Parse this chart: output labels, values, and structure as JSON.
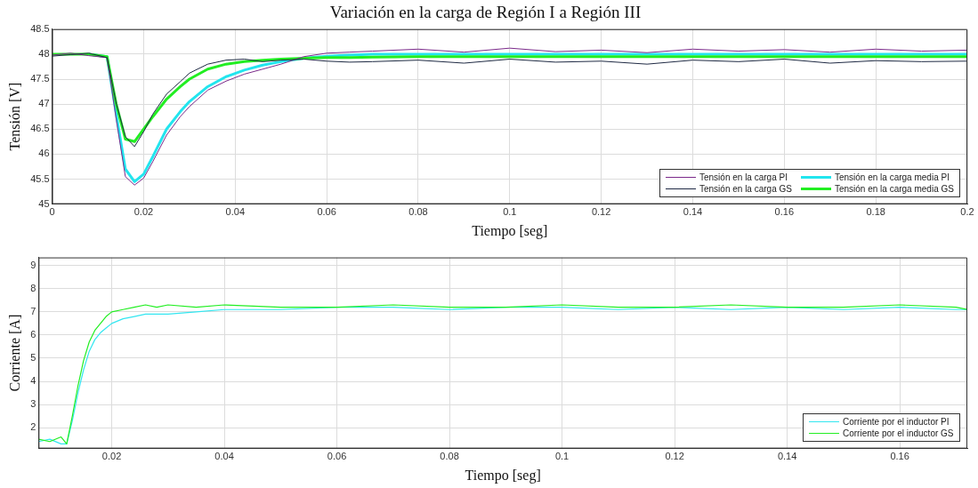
{
  "chart_data": [
    {
      "type": "line",
      "title": "Variación en la carga de Región I a Región III",
      "xlabel": "Tiempo [seg]",
      "ylabel": "Tensión [V]",
      "x": [
        0,
        0.004,
        0.008,
        0.012,
        0.014,
        0.016,
        0.018,
        0.02,
        0.022,
        0.025,
        0.028,
        0.03,
        0.034,
        0.038,
        0.042,
        0.046,
        0.05,
        0.055,
        0.06,
        0.065,
        0.07,
        0.08,
        0.09,
        0.1,
        0.11,
        0.12,
        0.13,
        0.14,
        0.15,
        0.16,
        0.17,
        0.18,
        0.19,
        0.2
      ],
      "series": [
        {
          "name": "Tensión en la carga PI",
          "color": "#7b2a8a",
          "values": [
            47.98,
            48.02,
            47.97,
            47.93,
            46.7,
            45.55,
            45.38,
            45.52,
            45.85,
            46.38,
            46.75,
            46.95,
            47.28,
            47.46,
            47.6,
            47.7,
            47.8,
            47.95,
            48.02,
            48.04,
            48.06,
            48.1,
            48.04,
            48.12,
            48.05,
            48.08,
            48.03,
            48.1,
            48.06,
            48.09,
            48.04,
            48.1,
            48.06,
            48.08
          ]
        },
        {
          "name": "Tensión en la carga media PI",
          "color": "#22e5ee",
          "values": [
            null,
            null,
            48,
            47.95,
            46.8,
            45.7,
            45.45,
            45.6,
            45.95,
            46.5,
            46.85,
            47.05,
            47.35,
            47.55,
            47.68,
            47.78,
            47.85,
            47.92,
            47.96,
            47.98,
            48,
            48,
            48,
            48,
            48,
            48,
            48,
            48,
            48,
            48,
            48,
            48,
            48,
            48
          ]
        },
        {
          "name": "Tensión en la carga GS",
          "color": "#1f2a44",
          "values": [
            47.96,
            47.99,
            48.02,
            47.93,
            47.02,
            46.35,
            46.15,
            46.45,
            46.8,
            47.2,
            47.45,
            47.62,
            47.8,
            47.88,
            47.9,
            47.85,
            47.88,
            47.9,
            47.86,
            47.84,
            47.85,
            47.88,
            47.82,
            47.9,
            47.84,
            47.86,
            47.8,
            47.88,
            47.85,
            47.9,
            47.82,
            47.87,
            47.85,
            47.86
          ]
        },
        {
          "name": "Tensión en la carga media GS",
          "color": "#22ee22",
          "values": [
            48,
            48,
            48,
            47.95,
            47,
            46.3,
            46.25,
            46.5,
            46.75,
            47.1,
            47.35,
            47.5,
            47.7,
            47.8,
            47.85,
            47.88,
            47.9,
            47.92,
            47.93,
            47.93,
            47.94,
            47.95,
            47.95,
            47.95,
            47.95,
            47.95,
            47.95,
            47.95,
            47.95,
            47.95,
            47.95,
            47.95,
            47.95,
            47.95
          ]
        }
      ],
      "xlim": [
        0,
        0.2
      ],
      "xticks": [
        0,
        0.02,
        0.04,
        0.06,
        0.08,
        0.1,
        0.12,
        0.14,
        0.16,
        0.18,
        0.2
      ],
      "ylim": [
        45,
        48.5
      ],
      "yticks": [
        45,
        45.5,
        46,
        46.5,
        47,
        47.5,
        48,
        48.5
      ],
      "grid": true,
      "legend": "bottom right"
    },
    {
      "type": "line",
      "xlabel": "Tiempo [seg]",
      "ylabel": "Corriente [A]",
      "x": [
        0.007,
        0.009,
        0.011,
        0.012,
        0.013,
        0.014,
        0.015,
        0.016,
        0.017,
        0.018,
        0.019,
        0.02,
        0.022,
        0.024,
        0.026,
        0.028,
        0.03,
        0.035,
        0.04,
        0.05,
        0.06,
        0.07,
        0.08,
        0.09,
        0.1,
        0.11,
        0.12,
        0.13,
        0.14,
        0.15,
        0.16,
        0.17,
        0.172
      ],
      "series": [
        {
          "name": "Corriente por el inductor PI",
          "color": "#33e6f0",
          "values": [
            1.4,
            1.5,
            1.3,
            1.3,
            2.3,
            3.5,
            4.5,
            5.3,
            5.8,
            6.1,
            6.3,
            6.5,
            6.7,
            6.8,
            6.9,
            6.9,
            6.9,
            7.0,
            7.1,
            7.1,
            7.2,
            7.2,
            7.1,
            7.2,
            7.2,
            7.1,
            7.2,
            7.1,
            7.2,
            7.1,
            7.2,
            7.1,
            7.1
          ]
        },
        {
          "name": "Corriente por el inductor GS",
          "color": "#22ee22",
          "values": [
            1.5,
            1.4,
            1.6,
            1.3,
            2.5,
            3.8,
            4.9,
            5.7,
            6.2,
            6.5,
            6.8,
            7.0,
            7.1,
            7.2,
            7.3,
            7.2,
            7.3,
            7.2,
            7.3,
            7.2,
            7.2,
            7.3,
            7.2,
            7.2,
            7.3,
            7.2,
            7.2,
            7.3,
            7.2,
            7.2,
            7.3,
            7.2,
            7.1
          ]
        }
      ],
      "xlim": [
        0.007,
        0.172
      ],
      "xticks": [
        0.02,
        0.04,
        0.06,
        0.08,
        0.1,
        0.12,
        0.14,
        0.16
      ],
      "ylim": [
        1.1,
        9.35
      ],
      "yticks": [
        2,
        3,
        4,
        5,
        6,
        7,
        8,
        9
      ],
      "grid": true,
      "legend": "bottom right"
    }
  ]
}
